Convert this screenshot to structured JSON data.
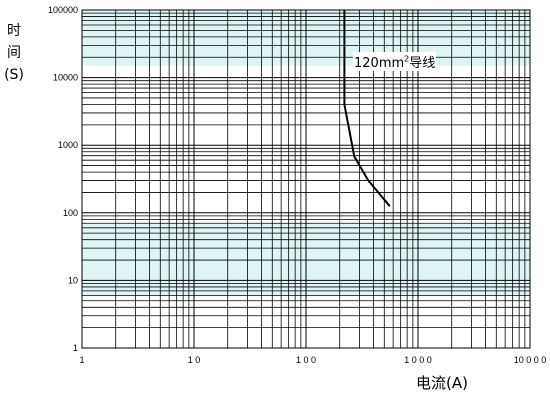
{
  "chart_data": {
    "type": "line",
    "title": "",
    "xlabel": "电流(A)",
    "ylabel_chars": [
      "时",
      "间",
      "(S)"
    ],
    "x_scale": "log",
    "y_scale": "log",
    "xlim": [
      1,
      10000
    ],
    "ylim": [
      1,
      100000
    ],
    "x_ticks": [
      {
        "value": 1,
        "label": "1"
      },
      {
        "value": 10,
        "label": "1 0"
      },
      {
        "value": 100,
        "label": "1 0 0"
      },
      {
        "value": 1000,
        "label": "1 0 0 0"
      },
      {
        "value": 10000,
        "label": "10 0 0 0"
      }
    ],
    "y_ticks": [
      {
        "value": 1,
        "label": "1"
      },
      {
        "value": 10,
        "label": "10"
      },
      {
        "value": 100,
        "label": "100"
      },
      {
        "value": 1000,
        "label": "1000"
      },
      {
        "value": 10000,
        "label": "10000"
      },
      {
        "value": 100000,
        "label": "100000"
      }
    ],
    "grid": true,
    "background_bands": [
      {
        "y_from": 15000,
        "y_to": 100000,
        "color": "#dff5f5"
      },
      {
        "y_from": 6,
        "y_to": 70,
        "color": "#dff5f5"
      }
    ],
    "series": [
      {
        "label": "120mm²导线",
        "color": "#000000",
        "points": [
          {
            "x": 220,
            "y": 100000
          },
          {
            "x": 220,
            "y": 4000
          },
          {
            "x": 270,
            "y": 680
          },
          {
            "x": 360,
            "y": 300
          },
          {
            "x": 560,
            "y": 125
          }
        ]
      }
    ]
  },
  "labels": {
    "curve_main": "120mm",
    "curve_sup": "2",
    "curve_tail": "导线"
  }
}
